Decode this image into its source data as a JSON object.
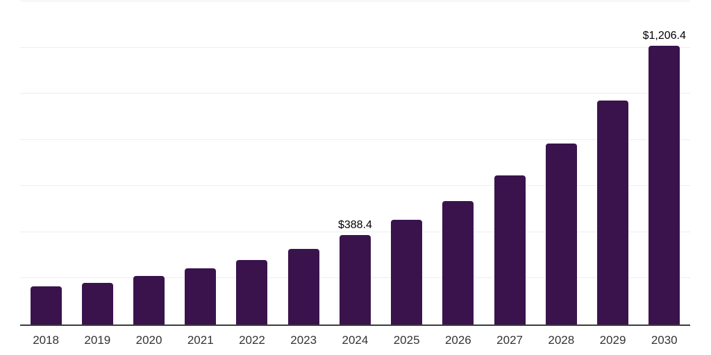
{
  "chart_data": {
    "type": "bar",
    "title": "",
    "xlabel": "",
    "ylabel": "",
    "categories": [
      "2018",
      "2019",
      "2020",
      "2021",
      "2022",
      "2023",
      "2024",
      "2025",
      "2026",
      "2027",
      "2028",
      "2029",
      "2030"
    ],
    "values": [
      165,
      181,
      209,
      242,
      280,
      327,
      388.4,
      454,
      536,
      647,
      784,
      969,
      1206.4
    ],
    "data_labels": {
      "2024": "$388.4",
      "2030": "$1,206.4"
    },
    "ylim": [
      0,
      1400
    ],
    "gridline_values": [
      200,
      400,
      600,
      800,
      1000,
      1200,
      1400
    ],
    "grid": "horizontal",
    "legend_position": "none"
  },
  "colors": {
    "bar": "#3a134d",
    "gridline": "#ededed",
    "axis_line": "#3b3b3b",
    "data_label": "#000000",
    "tick_label": "#333333",
    "background": "#ffffff"
  }
}
